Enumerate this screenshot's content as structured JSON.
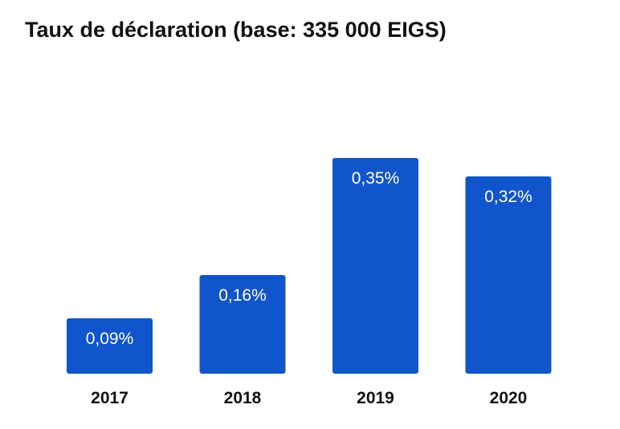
{
  "chart_data": {
    "type": "bar",
    "title": "Taux de déclaration (base: 335 000 EIGS)",
    "categories": [
      "2017",
      "2018",
      "2019",
      "2020"
    ],
    "values": [
      0.09,
      0.16,
      0.35,
      0.32
    ],
    "data_labels": [
      "0,09%",
      "0,16%",
      "0,35%",
      "0,32%"
    ],
    "xlabel": "",
    "ylabel": "",
    "ylim": [
      0,
      0.35
    ],
    "grid": false,
    "legend": "none",
    "bar_color": "#1155cc"
  }
}
